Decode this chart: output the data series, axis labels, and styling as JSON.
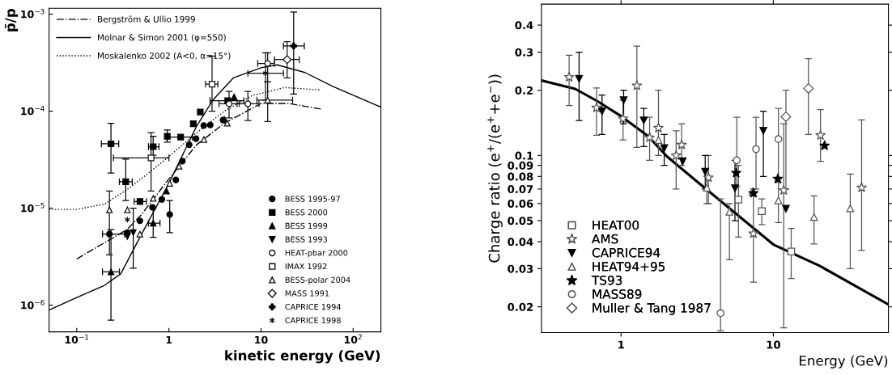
{
  "chart_data": [
    {
      "type": "scatter",
      "ylabel": "p̄/p",
      "xlabel": "kinetic energy (GeV)",
      "log": "xy",
      "legend": "upper left",
      "xlim": [
        0.05,
        200
      ],
      "ylim": [
        5.3e-07,
        0.00115
      ],
      "xticks": [
        {
          "value": 0.1,
          "label": "10$^{−1}$"
        },
        1,
        10,
        {
          "value": 100,
          "label": "10$^{2}$"
        }
      ],
      "yticks": [
        {
          "value": 1e-06,
          "label": "10$^{−6}$"
        },
        {
          "value": 1e-05,
          "label": "10$^{−5}$"
        },
        {
          "value": 0.0001,
          "label": "10$^{−4}$"
        },
        {
          "value": 0.001,
          "label": "10$^{−3}$"
        }
      ],
      "series": [
        {
          "name": "Bergström & Ullio 1999",
          "type": "line",
          "line_style": "dashdot",
          "color": "#000000",
          "x": [
            0.1,
            0.2,
            0.35,
            0.5,
            1,
            2,
            4,
            10,
            20,
            45
          ],
          "values": [
            3e-06,
            4.4e-06,
            6e-06,
            8.5e-06,
            2e-05,
            4.5e-05,
            7.5e-05,
            0.00012,
            0.00012,
            0.000105
          ]
        },
        {
          "name": "Molnar & Simon 2001 (φ=550)",
          "type": "line",
          "line_style": "solid",
          "color": "#000000",
          "x": [
            0.05,
            0.1,
            0.2,
            0.3,
            0.5,
            1,
            1.5,
            2,
            3,
            5,
            10,
            15,
            30,
            60,
            200
          ],
          "values": [
            8.9e-07,
            1.2e-06,
            1.6e-06,
            2.1e-06,
            5.3e-06,
            1.8e-05,
            4e-05,
            7e-05,
            0.00013,
            0.00022,
            0.00028,
            0.0003,
            0.00025,
            0.00018,
            0.00011
          ]
        },
        {
          "name": "Moskalenko 2002 (A<0, α=15°)",
          "type": "line",
          "line_style": "dotted",
          "color": "#000000",
          "x": [
            0.05,
            0.1,
            0.2,
            0.35,
            0.6,
            1,
            2,
            4,
            8,
            18,
            45
          ],
          "values": [
            9.7e-06,
            9.7e-06,
            1.1e-05,
            1.55e-05,
            2.3e-05,
            3.4e-05,
            6e-05,
            0.0001,
            0.000145,
            0.000175,
            0.000165
          ]
        },
        {
          "name": "BESS 1995-97",
          "marker": "circle",
          "color": "#000000",
          "x": [
            0.226,
            0.354,
            0.484,
            0.663,
            0.838,
            1.02,
            1.19,
            1.4,
            1.66,
            1.97,
            2.39,
            2.81,
            3.87
          ],
          "values": [
            5.4e-06,
            5.6e-06,
            7.4e-06,
            1.02e-05,
            1.23e-05,
            8.6e-06,
            1.95e-05,
            3.05e-05,
            4.5e-05,
            5.2e-05,
            7.1e-05,
            7.2e-05,
            8.1e-05
          ],
          "errors": [
            null,
            null,
            null,
            null,
            null,
            [
              5.6e-06,
              1.2e-05
            ],
            null,
            null,
            null,
            null,
            null,
            null,
            null
          ],
          "xerrors": [
            [
              0.19,
              0.33
            ],
            null,
            null,
            null,
            null,
            null,
            null,
            null,
            null,
            null,
            null,
            null,
            null
          ]
        },
        {
          "name": "BESS 2000",
          "marker": "square",
          "color": "#000000",
          "x": [
            0.235,
            0.34,
            0.485,
            0.675,
            0.96,
            1.34,
            1.84,
            2.19,
            4.35
          ],
          "values": [
            4.6e-05,
            1.87e-05,
            1.17e-05,
            4.3e-05,
            5.5e-05,
            5.4e-05,
            7.4e-05,
            9.8e-05,
            0.000128
          ],
          "errors": [
            [
              2.3e-05,
              7.5e-05
            ],
            [
              1.2e-05,
              3.2e-05
            ],
            null,
            [
              3.5e-05,
              5.5e-05
            ],
            [
              4.8e-05,
              6.4e-05
            ],
            null,
            null,
            null,
            null
          ],
          "xerrors": [
            [
              0.185,
              0.285
            ],
            [
              0.29,
              0.4
            ],
            [
              0.42,
              0.57
            ],
            [
              0.6,
              0.78
            ],
            null,
            [
              0.95,
              1.8
            ],
            null,
            null,
            [
              2.8,
              6.5
            ]
          ]
        },
        {
          "name": "BESS 1999",
          "marker": "triangle",
          "color": "#000000",
          "x": [
            0.235,
            0.675,
            0.94,
            4.0,
            5.1
          ],
          "values": [
            2.2e-06,
            7e-06,
            1.5e-05,
            8.2e-05,
            0.00014
          ],
          "errors": [
            [
              7e-07,
              6e-06
            ],
            [
              5e-06,
              1e-05
            ],
            null,
            null,
            null
          ],
          "xerrors": [
            [
              0.19,
              0.29
            ],
            [
              0.6,
              0.8
            ],
            null,
            null,
            null
          ]
        },
        {
          "name": "BESS 1993",
          "marker": "triangle_down",
          "color": "#000000",
          "x": [
            0.354,
            0.41
          ],
          "values": [
            5.1e-06,
            5.6e-06
          ],
          "errors": [
            null,
            [
              2.4e-06,
              1e-05
            ]
          ]
        },
        {
          "name": "HEAT-pbar 2000",
          "marker": "circle",
          "color": "#111111",
          "x": [
            4.5,
            7.2,
            11.8
          ],
          "values": [
            0.000119,
            0.000119,
            0.00031
          ],
          "errors": [
            [
              8.5e-05,
              0.00016
            ],
            [
              8e-05,
              0.00016
            ],
            [
              0.0002,
              0.0004
            ]
          ],
          "xerrors": [
            [
              3.5,
              5.8
            ],
            [
              5.5,
              9.5
            ],
            [
              9.2,
              14
            ]
          ]
        },
        {
          "name": "IMAX 1992",
          "marker": "square",
          "color": "#111111",
          "x": [
            0.64,
            2.94
          ],
          "values": [
            3.3e-05,
            0.00019
          ],
          "errors": [
            [
              1.5e-05,
              6e-05
            ],
            [
              0.0001,
              0.00037
            ]
          ],
          "xerrors": [
            [
              0.25,
              1.0
            ],
            [
              2.5,
              3.4
            ]
          ]
        },
        {
          "name": "BESS-polar 2004",
          "marker": "triangle",
          "color": "#111111",
          "x": [
            0.226,
            0.354,
            0.484,
            0.675,
            1.02,
            1.29,
            2.4,
            4.3,
            11.8
          ],
          "values": [
            9.6e-06,
            9.6e-06,
            5.4e-06,
            1.26e-05,
            1.8e-05,
            2.7e-05,
            5.1e-05,
            7.5e-05,
            0.00013
          ],
          "errors": [
            [
              3.3e-06,
              1.5e-05
            ],
            null,
            null,
            null,
            null,
            null,
            null,
            null,
            [
              7.8e-05,
              0.0002
            ]
          ],
          "xerrors": [
            null,
            null,
            null,
            null,
            null,
            null,
            null,
            null,
            [
              9,
              22
            ]
          ]
        },
        {
          "name": "MASS 1991",
          "marker": "diamond",
          "color": "#111111",
          "x": [
            19.2
          ],
          "values": [
            0.00034
          ],
          "errors": [
            [
              0.00022,
              0.00052
            ]
          ],
          "xerrors": [
            [
              14,
              26
            ]
          ]
        },
        {
          "name": "CAPRICE 1994",
          "marker": "cross",
          "color": "#000000",
          "x": [
            22.6
          ],
          "values": [
            0.00047
          ],
          "errors": [
            [
              0.00015,
              0.00105
            ]
          ],
          "xerrors": [
            [
              17.5,
              29.5
            ]
          ]
        },
        {
          "name": "CAPRICE 1998",
          "marker": "cross",
          "color": "#111111",
          "x": [
            0.354,
            11.2
          ],
          "values": [
            7.6e-06,
            0.000246
          ],
          "errors": [
            null,
            [
              0.00013,
              0.0004
            ]
          ],
          "xerrors": [
            null,
            [
              7.2,
              17.5
            ]
          ]
        }
      ]
    },
    {
      "type": "scatter",
      "ylabel": "Charge ratio (e$^{+}$/(e$^{+}$+e$^{−}$))",
      "xlabel": "Energy (GeV)",
      "log": "xy",
      "legend": "lower left",
      "xlim": [
        0.3,
        57
      ],
      "ylim": [
        0.0152,
        0.5
      ],
      "xticks": [
        1,
        10
      ],
      "yticks": [
        0.02,
        0.03,
        0.04,
        0.05,
        0.06,
        0.07,
        0.08,
        0.09,
        0.1,
        0.2,
        0.3,
        0.4
      ],
      "series": [
        {
          "type": "line",
          "line_style": "solid",
          "color": "#000000",
          "x": [
            0.3,
            0.5,
            0.7,
            1,
            1.5,
            2,
            3,
            5,
            10,
            20,
            57
          ],
          "values": [
            0.222,
            0.203,
            0.178,
            0.152,
            0.123,
            0.099,
            0.078,
            0.058,
            0.0388,
            0.031,
            0.0205
          ]
        },
        {
          "name": "HEAT00",
          "marker": "square",
          "color": "#555555",
          "x": [
            5.9,
            8.4,
            13.1
          ],
          "values": [
            0.0625,
            0.0553,
            0.036
          ],
          "errors": [
            [
              0.042,
              0.09
            ],
            [
              0.048,
              0.063
            ],
            [
              0.027,
              0.046
            ]
          ]
        },
        {
          "name": "AMS",
          "marker": "star",
          "color": "#555555",
          "x": [
            0.456,
            0.69,
            1.03,
            1.27,
            1.54,
            1.76,
            2.3,
            2.5,
            3.75,
            7.4,
            11.7,
            20.4,
            38
          ],
          "values": [
            0.23,
            0.166,
            0.148,
            0.21,
            0.121,
            0.134,
            0.1,
            0.112,
            0.079,
            0.0436,
            0.069,
            0.124,
            0.071
          ],
          "errors": [
            [
              0.17,
              0.29
            ],
            [
              0.124,
              0.205
            ],
            [
              0.118,
              0.18
            ],
            [
              0.109,
              0.32
            ],
            [
              0.095,
              0.15
            ],
            [
              0.1,
              0.2
            ],
            [
              0.07,
              0.13
            ],
            [
              0.09,
              0.14
            ],
            [
              0.06,
              0.1
            ],
            [
              0.026,
              0.07
            ],
            [
              0.016,
              0.14
            ],
            [
              0.094,
              0.163
            ],
            [
              0.0364,
              0.146
            ]
          ]
        },
        {
          "name": "CAPRICE94",
          "marker": "triangle_down",
          "color": "#000000",
          "x": [
            0.53,
            0.75,
            1.04,
            1.41,
            1.92,
            2.54,
            3.57,
            5.6,
            8.6,
            12.1
          ],
          "values": [
            0.226,
            0.16,
            0.18,
            0.145,
            0.108,
            0.094,
            0.084,
            0.0705,
            0.13,
            0.0568
          ],
          "errors": [
            [
              0.145,
              0.3
            ],
            [
              0.125,
              0.19
            ],
            [
              0.14,
              0.2
            ],
            [
              0.11,
              0.165
            ],
            [
              0.09,
              0.125
            ],
            null,
            [
              0.07,
              0.1
            ],
            [
              0.05,
              0.095
            ],
            [
              0.08,
              0.16
            ],
            null
          ]
        },
        {
          "name": "HEAT94+95",
          "marker": "triangle",
          "color": "#555555",
          "x": [
            1.76,
            3.66,
            5.15,
            7.3,
            10.8,
            18.5,
            32
          ],
          "values": [
            0.118,
            0.071,
            0.055,
            0.068,
            0.062,
            0.052,
            0.057
          ],
          "errors": [
            null,
            [
              0.06,
              0.08
            ],
            [
              0.033,
              0.06
            ],
            null,
            [
              0.049,
              0.075
            ],
            [
              0.039,
              0.065
            ],
            [
              0.03,
              0.082
            ]
          ]
        },
        {
          "name": "TS93",
          "marker": "star",
          "color": "#000000",
          "x": [
            5.7,
            7.4,
            10.7,
            21.7
          ],
          "values": [
            0.083,
            0.067,
            0.078,
            0.111
          ]
        },
        {
          "name": "MASS89",
          "marker": "circle",
          "color": "#555555",
          "x": [
            4.5,
            5.75,
            7.7,
            10.8
          ],
          "values": [
            0.0187,
            0.095,
            0.107,
            0.119
          ],
          "errors": [
            [
              0.0155,
              0.063
            ],
            [
              0.072,
              0.15
            ],
            [
              0.07,
              0.15
            ],
            [
              0.078,
              0.165
            ]
          ]
        },
        {
          "name": "Muller & Tang 1987",
          "marker": "diamond",
          "color": "#555555",
          "x": [
            12.1,
            17
          ],
          "values": [
            0.151,
            0.204
          ],
          "errors": [
            [
              0.07,
              0.2
            ],
            [
              0.125,
              0.28
            ]
          ]
        }
      ]
    }
  ]
}
